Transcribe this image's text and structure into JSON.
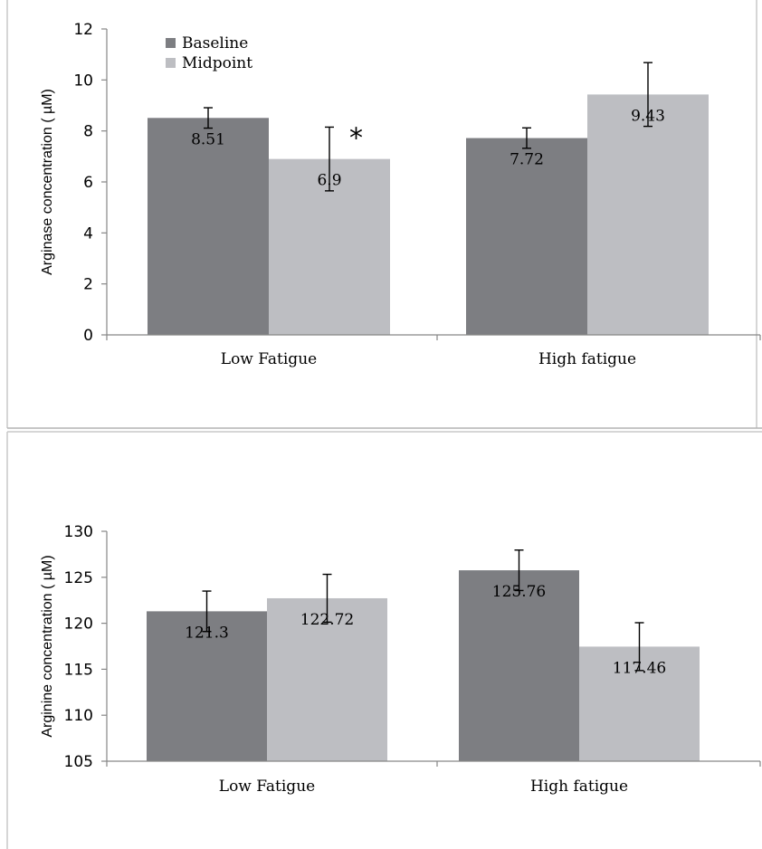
{
  "chart_data": [
    {
      "type": "bar",
      "ylabel": "Arginase concentration (   µM)",
      "ylim": [
        0,
        12
      ],
      "yticks": [
        0,
        2,
        4,
        6,
        8,
        10,
        12
      ],
      "categories": [
        "Low Fatigue",
        "High fatigue"
      ],
      "series": [
        {
          "name": "Baseline",
          "color": "#7d7e82",
          "values": [
            8.51,
            7.72
          ],
          "errors": [
            0.4,
            0.4
          ]
        },
        {
          "name": "Midpoint",
          "color": "#bdbec2",
          "values": [
            6.9,
            9.43
          ],
          "errors": [
            1.25,
            1.25
          ]
        }
      ],
      "data_labels": [
        [
          "8.51",
          "7.72"
        ],
        [
          "6.9",
          "9.43"
        ]
      ],
      "annotations": [
        {
          "text": "*",
          "series": 1,
          "category": 0
        }
      ],
      "legend": {
        "position": "top-left",
        "entries": [
          "Baseline",
          "Midpoint"
        ]
      },
      "grid": false
    },
    {
      "type": "bar",
      "ylabel": "Arginine concentration (   µM)",
      "ylim": [
        105,
        130
      ],
      "yticks": [
        105,
        110,
        115,
        120,
        125,
        130
      ],
      "categories": [
        "Low Fatigue",
        "High fatigue"
      ],
      "series": [
        {
          "color": "#7d7e82",
          "values": [
            121.3,
            125.76
          ],
          "errors": [
            2.2,
            2.2
          ]
        },
        {
          "color": "#bdbec2",
          "values": [
            122.72,
            117.46
          ],
          "errors": [
            2.6,
            2.6
          ]
        }
      ],
      "data_labels": [
        [
          "121.3",
          "125.76"
        ],
        [
          "122.72",
          "117.46"
        ]
      ],
      "grid": false
    }
  ]
}
